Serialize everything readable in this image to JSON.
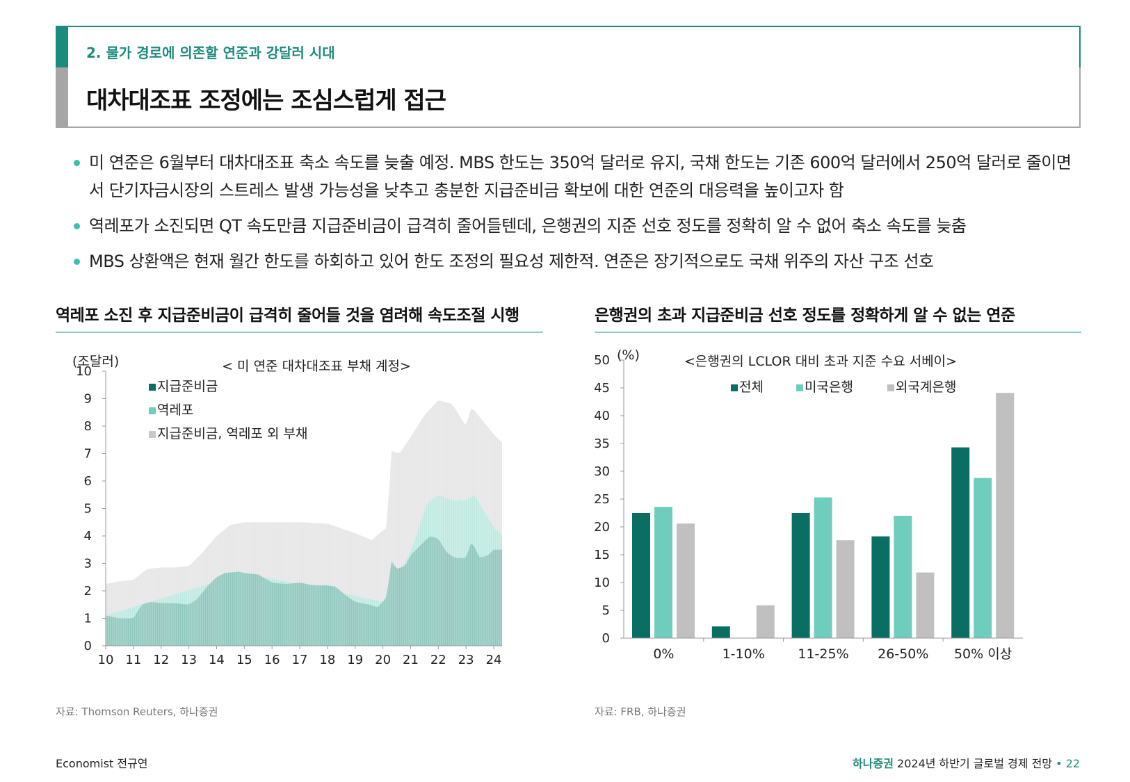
{
  "header": {
    "section": "2. 물가 경로에 의존할 연준과 강달러 시대",
    "title": "대차대조표 조정에는 조심스럽게 접근"
  },
  "bullets": [
    "미 연준은 6월부터 대차대조표 축소 속도를 늦출 예정. MBS 한도는 350억 달러로 유지, 국채 한도는 기존 600억 달러에서 250억 달러로 줄이면서 단기자금시장의 스트레스 발생 가능성을 낮추고 충분한 지급준비금 확보에 대한 연준의 대응력을 높이고자 함",
    "역레포가 소진되면 QT 속도만큼 지급준비금이 급격히 줄어들텐데, 은행권의 지준 선호 정도를 정확히 알 수 없어 축소 속도를 늦춤",
    "MBS 상환액은 현재 월간 한도를 하회하고 있어 한도 조정의 필요성 제한적. 연준은 장기적으로도 국채 위주의 자산 구조 선호"
  ],
  "left_chart": {
    "heading": "역레포 소진 후 지급준비금이 급격히 줄어들 것을 염려해 속도조절 시행",
    "source": "자료: Thomson Reuters, 하나증권"
  },
  "right_chart": {
    "heading": "은행권의 초과 지급준비금 선호 정도를 정확하게 알 수 없는 연준",
    "source": "자료: FRB, 하나증권"
  },
  "footer": {
    "author": "Economist 전규연",
    "brand": "하나증권",
    "report": "2024년 하반기 글로벌 경제 전망",
    "bullet": "•",
    "page": "22"
  },
  "colors": {
    "dark": "#0b6e64",
    "mid": "#6fcdbd",
    "light": "#c0c0c0",
    "reserves": "#8fc7bd",
    "rrp": "#bde9e1",
    "other": "#e6e6e6"
  },
  "chart_data": [
    {
      "type": "area",
      "title": "< 미 연준 대차대조표 부채 계정>",
      "ylabel": "(조달러)",
      "ylim": [
        0,
        10
      ],
      "yticks": [
        "0",
        "1",
        "2",
        "3",
        "4",
        "5",
        "6",
        "7",
        "8",
        "9",
        "10"
      ],
      "xticks": [
        "10",
        "11",
        "12",
        "13",
        "14",
        "15",
        "16",
        "17",
        "18",
        "19",
        "20",
        "21",
        "22",
        "23",
        "24"
      ],
      "xrange": [
        10,
        24.3
      ],
      "series": [
        {
          "name": "지급준비금",
          "color": "#8fc7bd",
          "points": [
            [
              10,
              1.1
            ],
            [
              10.5,
              1.0
            ],
            [
              11,
              1.0
            ],
            [
              11.3,
              1.5
            ],
            [
              11.6,
              1.6
            ],
            [
              12,
              1.55
            ],
            [
              12.5,
              1.55
            ],
            [
              13,
              1.5
            ],
            [
              13.3,
              1.7
            ],
            [
              13.7,
              2.2
            ],
            [
              14,
              2.5
            ],
            [
              14.3,
              2.65
            ],
            [
              14.8,
              2.7
            ],
            [
              15,
              2.65
            ],
            [
              15.5,
              2.6
            ],
            [
              16,
              2.3
            ],
            [
              16.5,
              2.25
            ],
            [
              17,
              2.3
            ],
            [
              17.5,
              2.2
            ],
            [
              18,
              2.2
            ],
            [
              18.3,
              2.15
            ],
            [
              18.7,
              1.8
            ],
            [
              19,
              1.6
            ],
            [
              19.5,
              1.5
            ],
            [
              19.8,
              1.4
            ],
            [
              20,
              1.6
            ],
            [
              20.15,
              1.8
            ],
            [
              20.3,
              3.1
            ],
            [
              20.5,
              2.8
            ],
            [
              20.8,
              2.9
            ],
            [
              21,
              3.3
            ],
            [
              21.3,
              3.6
            ],
            [
              21.7,
              4.0
            ],
            [
              22,
              3.9
            ],
            [
              22.3,
              3.4
            ],
            [
              22.6,
              3.2
            ],
            [
              23,
              3.2
            ],
            [
              23.2,
              3.8
            ],
            [
              23.5,
              3.2
            ],
            [
              23.8,
              3.3
            ],
            [
              24,
              3.5
            ],
            [
              24.3,
              3.5
            ]
          ]
        },
        {
          "name": "역레포",
          "color": "#bde9e1",
          "points": [
            [
              10,
              1.1
            ],
            [
              15,
              2.65
            ],
            [
              20,
              1.6
            ],
            [
              21,
              3.4
            ],
            [
              21.3,
              4.3
            ],
            [
              21.6,
              5.2
            ],
            [
              22,
              5.5
            ],
            [
              22.5,
              5.3
            ],
            [
              23,
              5.3
            ],
            [
              23.3,
              5.5
            ],
            [
              23.6,
              5.0
            ],
            [
              24,
              4.3
            ],
            [
              24.3,
              4.0
            ]
          ]
        },
        {
          "name": "지급준비금, 역레포 외 부채",
          "color": "#e6e6e6",
          "points": [
            [
              10,
              2.25
            ],
            [
              10.5,
              2.35
            ],
            [
              11,
              2.4
            ],
            [
              11.5,
              2.8
            ],
            [
              12,
              2.85
            ],
            [
              12.5,
              2.85
            ],
            [
              13,
              2.9
            ],
            [
              13.5,
              3.4
            ],
            [
              14,
              4.0
            ],
            [
              14.5,
              4.4
            ],
            [
              15,
              4.5
            ],
            [
              16,
              4.5
            ],
            [
              17,
              4.5
            ],
            [
              18,
              4.45
            ],
            [
              19,
              4.1
            ],
            [
              19.6,
              3.85
            ],
            [
              20,
              4.2
            ],
            [
              20.15,
              4.3
            ],
            [
              20.3,
              7.1
            ],
            [
              20.6,
              7.0
            ],
            [
              21,
              7.6
            ],
            [
              21.5,
              8.4
            ],
            [
              22,
              8.95
            ],
            [
              22.5,
              8.8
            ],
            [
              23,
              8.0
            ],
            [
              23.2,
              8.7
            ],
            [
              23.6,
              8.2
            ],
            [
              24,
              7.7
            ],
            [
              24.3,
              7.4
            ]
          ]
        }
      ]
    },
    {
      "type": "bar",
      "title": "<은행권의 LCLOR 대비 초과 지준 수요 서베이>",
      "ylabel": "(%)",
      "ylim": [
        0,
        50
      ],
      "yticks": [
        "0",
        "5",
        "10",
        "15",
        "20",
        "25",
        "30",
        "35",
        "40",
        "45",
        "50"
      ],
      "categories": [
        "0%",
        "1-10%",
        "11-25%",
        "26-50%",
        "50% 이상"
      ],
      "series": [
        {
          "name": "전체",
          "color": "#0b6e64",
          "values": [
            22.5,
            2.1,
            22.5,
            18.3,
            34.3
          ]
        },
        {
          "name": "미국은행",
          "color": "#6fcdbd",
          "values": [
            23.6,
            0,
            25.3,
            22.0,
            28.8
          ]
        },
        {
          "name": "외국계은행",
          "color": "#c0c0c0",
          "values": [
            20.6,
            5.9,
            17.6,
            11.8,
            44.1
          ]
        }
      ]
    }
  ]
}
